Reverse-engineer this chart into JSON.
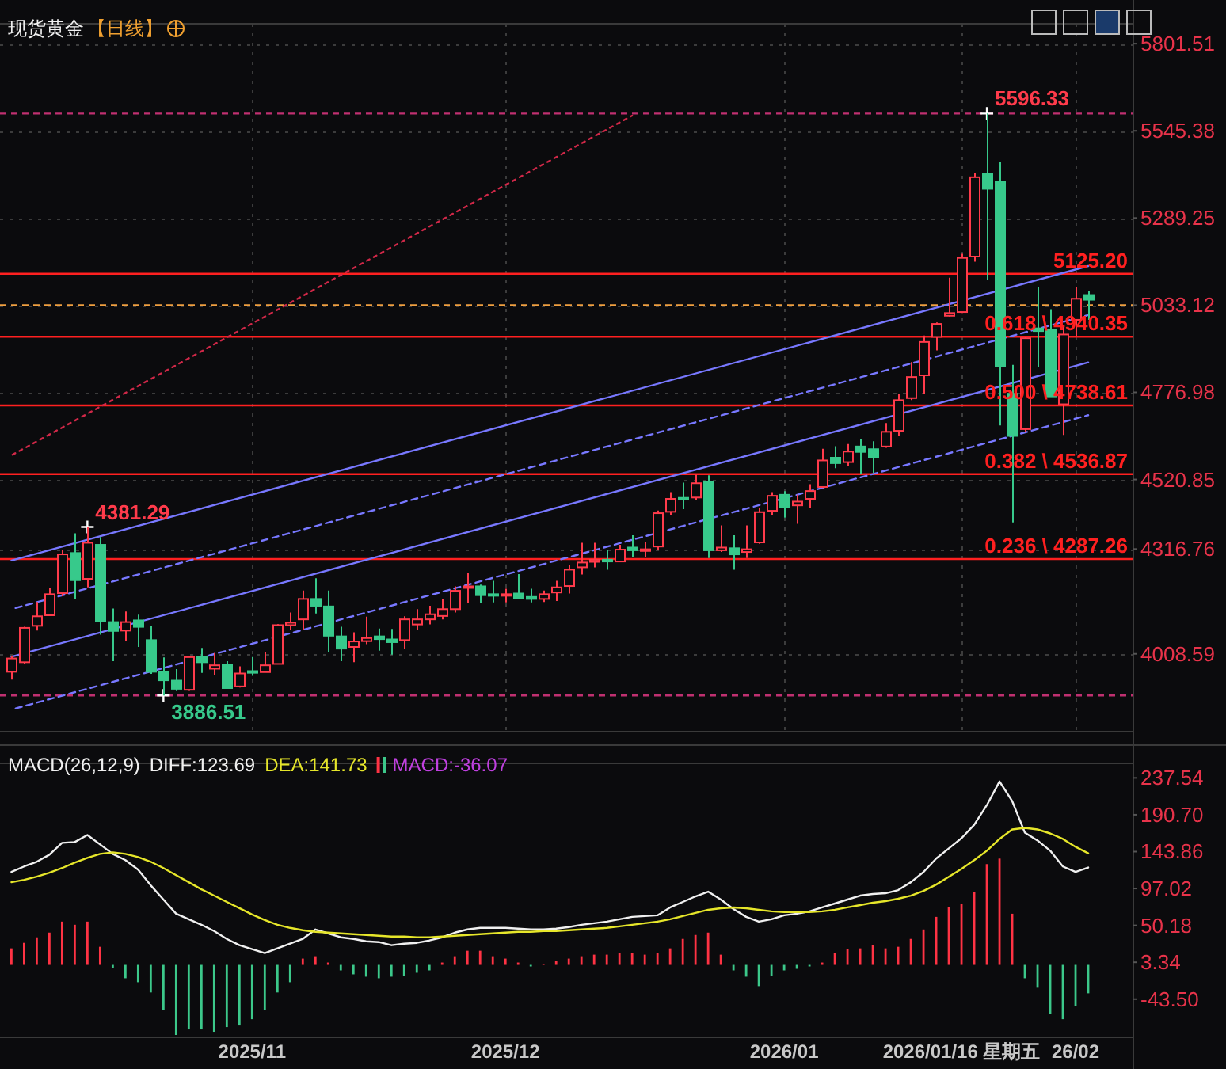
{
  "chart_data": [
    {
      "type": "candlestick",
      "title": "现货黄金",
      "subtitle": "【日线】",
      "tick_labels": "y",
      "grid": true,
      "categories": [
        null,
        null,
        null,
        null,
        null,
        null,
        null,
        null,
        null,
        null,
        null,
        null,
        null,
        null,
        null,
        null,
        null,
        null,
        null,
        null,
        null,
        null,
        null,
        null,
        null,
        null,
        null,
        null,
        null,
        null,
        null,
        null,
        null,
        null,
        null,
        null,
        null,
        null,
        null,
        null,
        null,
        null,
        null,
        null,
        null,
        null,
        null,
        null,
        null,
        null,
        null,
        null,
        null,
        null,
        null,
        null,
        null,
        null,
        null,
        null,
        null,
        null,
        null,
        null,
        null,
        null,
        null,
        null,
        null,
        null,
        null,
        null,
        null,
        null,
        null,
        null,
        null,
        null,
        null,
        null,
        null,
        null,
        null,
        null,
        null,
        null
      ],
      "ohlc": [
        [
          3956,
          4003,
          3933,
          3995
        ],
        [
          3984,
          4088,
          3980,
          4085
        ],
        [
          4091,
          4161,
          4077,
          4119
        ],
        [
          4122,
          4201,
          4120,
          4184
        ],
        [
          4187,
          4313,
          4178,
          4301
        ],
        [
          4305,
          4363,
          4169,
          4225
        ],
        [
          4229,
          4381.29,
          4204,
          4335
        ],
        [
          4329,
          4352,
          4065,
          4104
        ],
        [
          4102,
          4142,
          3987,
          4076
        ],
        [
          4077,
          4133,
          4046,
          4102
        ],
        [
          4107,
          4124,
          4029,
          4088
        ],
        [
          4049,
          4091,
          3950,
          3956
        ],
        [
          3956,
          3998,
          3886.51,
          3931
        ],
        [
          3930,
          3964,
          3899,
          3906
        ],
        [
          3903,
          4003,
          3900,
          3999
        ],
        [
          3999,
          4026,
          3953,
          3984
        ],
        [
          3965,
          4011,
          3945,
          3975
        ],
        [
          3976,
          3987,
          3908,
          3908
        ],
        [
          3913,
          3972,
          3910,
          3951
        ],
        [
          3958,
          3999,
          3944,
          3953
        ],
        [
          3955,
          4015,
          3955,
          3975
        ],
        [
          3979,
          4096,
          3979,
          4093
        ],
        [
          4093,
          4130,
          4080,
          4100
        ],
        [
          4110,
          4195,
          4080,
          4170
        ],
        [
          4170,
          4231,
          4127,
          4150
        ],
        [
          4148,
          4195,
          4015,
          4062
        ],
        [
          4060,
          4088,
          3987,
          4024
        ],
        [
          4029,
          4072,
          3984,
          4045
        ],
        [
          4046,
          4118,
          4037,
          4055
        ],
        [
          4060,
          4083,
          4018,
          4052
        ],
        [
          4051,
          4082,
          4006,
          4043
        ],
        [
          4049,
          4119,
          4024,
          4110
        ],
        [
          4095,
          4140,
          4080,
          4110
        ],
        [
          4110,
          4150,
          4095,
          4125
        ],
        [
          4120,
          4170,
          4110,
          4140
        ],
        [
          4140,
          4207,
          4130,
          4194
        ],
        [
          4203,
          4246,
          4158,
          4207
        ],
        [
          4207,
          4212,
          4158,
          4181
        ],
        [
          4184,
          4223,
          4160,
          4180
        ],
        [
          4180,
          4200,
          4160,
          4184
        ],
        [
          4186,
          4243,
          4170,
          4173
        ],
        [
          4176,
          4200,
          4160,
          4170
        ],
        [
          4170,
          4195,
          4161,
          4184
        ],
        [
          4189,
          4223,
          4164,
          4204
        ],
        [
          4208,
          4270,
          4186,
          4256
        ],
        [
          4263,
          4335,
          4242,
          4277
        ],
        [
          4279,
          4335,
          4263,
          4285
        ],
        [
          4285,
          4313,
          4256,
          4280
        ],
        [
          4280,
          4329,
          4280,
          4315
        ],
        [
          4321,
          4357,
          4293,
          4313
        ],
        [
          4311,
          4338,
          4293,
          4316
        ],
        [
          4324,
          4430,
          4313,
          4422
        ],
        [
          4426,
          4484,
          4417,
          4464
        ],
        [
          4467,
          4512,
          4434,
          4462
        ],
        [
          4468,
          4535,
          4461,
          4510
        ],
        [
          4515,
          4533,
          4290,
          4313
        ],
        [
          4313,
          4386,
          4308,
          4321
        ],
        [
          4319,
          4357,
          4256,
          4301
        ],
        [
          4308,
          4386,
          4290,
          4316
        ],
        [
          4336,
          4437,
          4332,
          4425
        ],
        [
          4429,
          4484,
          4417,
          4473
        ],
        [
          4476,
          4487,
          4409,
          4440
        ],
        [
          4445,
          4476,
          4391,
          4456
        ],
        [
          4464,
          4507,
          4437,
          4487
        ],
        [
          4499,
          4611,
          4496,
          4577
        ],
        [
          4585,
          4619,
          4554,
          4569
        ],
        [
          4572,
          4625,
          4561,
          4603
        ],
        [
          4618,
          4641,
          4537,
          4602
        ],
        [
          4610,
          4633,
          4540,
          4587
        ],
        [
          4618,
          4687,
          4614,
          4661
        ],
        [
          4664,
          4773,
          4649,
          4754
        ],
        [
          4760,
          4866,
          4754,
          4822
        ],
        [
          4827,
          4944,
          4773,
          4925
        ],
        [
          4940,
          4982,
          4900,
          4978
        ],
        [
          5002,
          5114,
          5000,
          5010
        ],
        [
          5013,
          5184,
          5010,
          5172
        ],
        [
          5176,
          5420,
          5161,
          5409
        ],
        [
          5420,
          5596.33,
          5106,
          5375
        ],
        [
          5397,
          5453,
          4680,
          4853
        ],
        [
          4773,
          4858,
          4395,
          4649
        ],
        [
          4669,
          4940,
          4660,
          4936
        ],
        [
          4965,
          5086,
          4850,
          4957
        ],
        [
          4962,
          5021,
          4765,
          4765
        ],
        [
          4742,
          4975,
          4652,
          4947
        ],
        [
          4990,
          5086,
          4943,
          5052
        ],
        [
          5063,
          5075,
          4990,
          5049
        ]
      ],
      "colors": [
        "#ff3b4b",
        "#ff3b4b",
        "#ff3b4b",
        "#ff3b4b",
        "#ff3b4b",
        "#37c98b",
        "#ff3b4b",
        "#37c98b",
        "#37c98b",
        "#ff3b4b",
        "#37c98b",
        "#37c98b",
        "#37c98b",
        "#37c98b",
        "#ff3b4b",
        "#37c98b",
        "#ff3b4b",
        "#37c98b",
        "#ff3b4b",
        "#37c98b",
        "#ff3b4b",
        "#ff3b4b",
        "#ff3b4b",
        "#ff3b4b",
        "#37c98b",
        "#37c98b",
        "#37c98b",
        "#ff3b4b",
        "#ff3b4b",
        "#37c98b",
        "#37c98b",
        "#ff3b4b",
        "#ff3b4b",
        "#ff3b4b",
        "#ff3b4b",
        "#ff3b4b",
        "#ff3b4b",
        "#37c98b",
        "#37c98b",
        "#ff3b4b",
        "#37c98b",
        "#37c98b",
        "#ff3b4b",
        "#ff3b4b",
        "#ff3b4b",
        "#ff3b4b",
        "#ff3b4b",
        "#37c98b",
        "#ff3b4b",
        "#37c98b",
        "#ff3b4b",
        "#ff3b4b",
        "#ff3b4b",
        "#37c98b",
        "#ff3b4b",
        "#37c98b",
        "#ff3b4b",
        "#37c98b",
        "#ff3b4b",
        "#ff3b4b",
        "#ff3b4b",
        "#37c98b",
        "#ff3b4b",
        "#ff3b4b",
        "#ff3b4b",
        "#37c98b",
        "#ff3b4b",
        "#37c98b",
        "#37c98b",
        "#ff3b4b",
        "#ff3b4b",
        "#ff3b4b",
        "#ff3b4b",
        "#ff3b4b",
        "#ff3b4b",
        "#ff3b4b",
        "#ff3b4b",
        "#37c98b",
        "#37c98b",
        "#37c98b",
        "#ff3b4b",
        "#37c98b",
        "#37c98b",
        "#ff3b4b",
        "#ff3b4b",
        "#37c98b"
      ],
      "ylim": [
        3780,
        5860
      ],
      "yticks": [
        5801.51,
        5545.38,
        5289.25,
        5033.12,
        4776.98,
        4520.85,
        4316.76,
        4008.59
      ],
      "series": [
        {
          "type": "line",
          "color": "#7878ff",
          "line_style": "solid",
          "values": [
            4283,
            null,
            null,
            null,
            null,
            null,
            null,
            null,
            null,
            null,
            null,
            null,
            null,
            null,
            null,
            null,
            null,
            null,
            null,
            null,
            null,
            null,
            null,
            null,
            null,
            null,
            null,
            null,
            null,
            null,
            null,
            null,
            null,
            null,
            null,
            null,
            null,
            null,
            null,
            null,
            null,
            null,
            null,
            null,
            null,
            null,
            null,
            null,
            null,
            null,
            null,
            null,
            null,
            null,
            null,
            null,
            null,
            null,
            null,
            null,
            null,
            null,
            null,
            null,
            null,
            null,
            null,
            null,
            null,
            null,
            null,
            null,
            null,
            null,
            null,
            null,
            null,
            null,
            null,
            null,
            null,
            null,
            null,
            null,
            null,
            5148
          ]
        },
        {
          "type": "line",
          "color": "#7878ff",
          "line_style": "dashed",
          "values": [
            4140,
            null,
            null,
            null,
            null,
            null,
            null,
            null,
            null,
            null,
            null,
            null,
            null,
            null,
            null,
            null,
            null,
            null,
            null,
            null,
            null,
            null,
            null,
            null,
            null,
            null,
            null,
            null,
            null,
            null,
            null,
            null,
            null,
            null,
            null,
            null,
            null,
            null,
            null,
            null,
            null,
            null,
            null,
            null,
            null,
            null,
            null,
            null,
            null,
            null,
            null,
            null,
            null,
            null,
            null,
            null,
            null,
            null,
            null,
            null,
            null,
            null,
            null,
            null,
            null,
            null,
            null,
            null,
            null,
            null,
            null,
            null,
            null,
            null,
            null,
            null,
            null,
            null,
            null,
            null,
            null,
            null,
            null,
            null,
            null,
            5004
          ]
        },
        {
          "type": "line",
          "color": "#7878ff",
          "line_style": "solid",
          "values": [
            4000,
            null,
            null,
            null,
            null,
            null,
            null,
            null,
            null,
            null,
            null,
            null,
            null,
            null,
            null,
            null,
            null,
            null,
            null,
            null,
            null,
            null,
            null,
            null,
            null,
            null,
            null,
            null,
            null,
            null,
            null,
            null,
            null,
            null,
            null,
            null,
            null,
            null,
            null,
            null,
            null,
            null,
            null,
            null,
            null,
            null,
            null,
            null,
            null,
            null,
            null,
            null,
            null,
            null,
            null,
            null,
            null,
            null,
            null,
            null,
            null,
            null,
            null,
            null,
            null,
            null,
            null,
            null,
            null,
            null,
            null,
            null,
            null,
            null,
            null,
            null,
            null,
            null,
            null,
            null,
            null,
            null,
            null,
            null,
            null,
            4865
          ]
        },
        {
          "type": "line",
          "color": "#7878ff",
          "line_style": "dashed",
          "values": [
            3845,
            null,
            null,
            null,
            null,
            null,
            null,
            null,
            null,
            null,
            null,
            null,
            null,
            null,
            null,
            null,
            null,
            null,
            null,
            null,
            null,
            null,
            null,
            null,
            null,
            null,
            null,
            null,
            null,
            null,
            null,
            null,
            null,
            null,
            null,
            null,
            null,
            null,
            null,
            null,
            null,
            null,
            null,
            null,
            null,
            null,
            null,
            null,
            null,
            null,
            null,
            null,
            null,
            null,
            null,
            null,
            null,
            null,
            null,
            null,
            null,
            null,
            null,
            null,
            null,
            null,
            null,
            null,
            null,
            null,
            null,
            null,
            null,
            null,
            null,
            null,
            null,
            null,
            null,
            null,
            null,
            null,
            null,
            null,
            null,
            4710
          ]
        },
        {
          "type": "line",
          "color": "#d02848",
          "line_style": "dotted",
          "values": [
            4592,
            null,
            null,
            null,
            null,
            null,
            null,
            null,
            null,
            null,
            null,
            null,
            null,
            null,
            null,
            null,
            null,
            null,
            null,
            null,
            null,
            null,
            null,
            null,
            null,
            null,
            null,
            null,
            null,
            null,
            null,
            null,
            null,
            null,
            null,
            null,
            null,
            null,
            null,
            null,
            null,
            null,
            null,
            null,
            null,
            null,
            null,
            null,
            null,
            5590,
            null,
            null,
            null,
            null,
            null,
            null,
            null,
            null,
            null,
            null,
            null,
            null,
            null,
            null,
            null,
            null,
            null,
            null,
            null,
            null,
            null,
            null,
            null,
            null,
            null,
            null,
            null,
            null,
            null,
            null,
            null,
            null,
            null,
            null,
            null,
            null
          ]
        }
      ],
      "ref_lines": [
        {
          "axis": "y",
          "value": 5125.2,
          "label": "5125.20",
          "color": "#ff2020"
        },
        {
          "axis": "y",
          "value": 4940.35,
          "label": "0.618 \\ 4940.35",
          "color": "#ff2020"
        },
        {
          "axis": "y",
          "value": 4738.61,
          "label": "0.500 \\ 4738.61",
          "color": "#ff2020"
        },
        {
          "axis": "y",
          "value": 4536.87,
          "label": "0.382 \\ 4536.87",
          "color": "#ff2020"
        },
        {
          "axis": "y",
          "value": 4287.26,
          "label": "0.236 \\ 4287.26",
          "color": "#ff2020"
        },
        {
          "axis": "y",
          "value": 5033.12,
          "color": "#f0a040",
          "line_style": "dashed"
        },
        {
          "axis": "y",
          "value": 5596.33,
          "color": "#c03070",
          "line_style": "dashed"
        },
        {
          "axis": "y",
          "value": 3886.51,
          "color": "#c03070",
          "line_style": "dashed"
        }
      ],
      "annotations": [
        {
          "text": "4381.29",
          "y": 4381.29
        },
        {
          "text": "5596.33",
          "y": 5596.33
        },
        {
          "text": "3886.51",
          "y": 3886.51
        }
      ]
    },
    {
      "type": "line",
      "title": "MACD(26,12,9)",
      "legend": "top left",
      "categories": [
        null,
        null,
        null,
        null,
        null,
        null,
        null,
        null,
        null,
        null,
        null,
        null,
        null,
        null,
        null,
        null,
        null,
        null,
        null,
        "2025/11",
        null,
        null,
        null,
        null,
        null,
        null,
        null,
        null,
        null,
        null,
        null,
        null,
        null,
        null,
        null,
        null,
        null,
        null,
        null,
        "2025/12",
        null,
        null,
        null,
        null,
        null,
        null,
        null,
        null,
        null,
        null,
        null,
        null,
        null,
        null,
        null,
        null,
        null,
        null,
        null,
        null,
        null,
        "2026/01",
        null,
        null,
        null,
        null,
        null,
        null,
        null,
        null,
        null,
        null,
        null,
        null,
        null,
        "2026/01/16 星期五",
        null,
        null,
        null,
        null,
        null,
        null,
        null,
        null,
        "26/02",
        null
      ],
      "ylim": [
        -92,
        256
      ],
      "yticks": [
        237.54,
        {
          "value": 190.7,
          "label": "190.70"
        },
        143.86,
        97.02,
        50.18,
        3.34,
        {
          "value": -43.5,
          "label": "-43.50"
        }
      ],
      "series": [
        {
          "name": "DIFF:123.69",
          "color": "#f0f0f0",
          "values": [
            118,
            125,
            131,
            140,
            155,
            156,
            165,
            153,
            141,
            133,
            121,
            101,
            83,
            65,
            58,
            51,
            43,
            33,
            25,
            20,
            15,
            21,
            27,
            33,
            45,
            40,
            35,
            33,
            30,
            29,
            25,
            27,
            28,
            31,
            35,
            41,
            45,
            47,
            47,
            47,
            46,
            45,
            45,
            46,
            48,
            51,
            53,
            55,
            58,
            61,
            62,
            63,
            73,
            80,
            87,
            93,
            83,
            71,
            61,
            55,
            58,
            63,
            65,
            68,
            73,
            78,
            83,
            88,
            90,
            91,
            95,
            105,
            118,
            135,
            148,
            161,
            178,
            203,
            233,
            208,
            168,
            158,
            145,
            125,
            118,
            123.69
          ]
        },
        {
          "name": "DEA:141.73",
          "color": "#e6e62a",
          "values": [
            105,
            108,
            112,
            117,
            123,
            130,
            136,
            141,
            143,
            141,
            137,
            131,
            123,
            114,
            105,
            96,
            88,
            80,
            72,
            64,
            57,
            51,
            47,
            44,
            42,
            41,
            40,
            39,
            38,
            37,
            36,
            36,
            35,
            35,
            36,
            37,
            38,
            39,
            40,
            41,
            42,
            42,
            43,
            43,
            44,
            45,
            46,
            47,
            49,
            51,
            53,
            55,
            58,
            62,
            66,
            70,
            72,
            73,
            72,
            70,
            68,
            67,
            67,
            67,
            68,
            70,
            73,
            76,
            79,
            81,
            84,
            88,
            94,
            102,
            112,
            122,
            133,
            145,
            160,
            172,
            174,
            172,
            167,
            160,
            150,
            141.73
          ]
        },
        {
          "name": "MACD:-36.07",
          "type": "bar",
          "color": "#c040e0",
          "values": [
            21,
            28,
            35,
            41,
            55,
            51,
            55,
            23,
            -4,
            -17,
            -22,
            -35,
            -57,
            -89,
            -82,
            -82,
            -85,
            -79,
            -77,
            -69,
            -57,
            -35,
            -22,
            8,
            11,
            3,
            -7,
            -12,
            -15,
            -17,
            -15,
            -14,
            -10,
            -7,
            3,
            11,
            18,
            18,
            11,
            8,
            3,
            -2,
            1,
            5,
            8,
            11,
            13,
            13,
            15,
            15,
            13,
            15,
            21,
            33,
            38,
            41,
            13,
            -7,
            -15,
            -27,
            -14,
            -7,
            -5,
            -2,
            3,
            15,
            20,
            21,
            25,
            21,
            23,
            33,
            45,
            61,
            73,
            78,
            93,
            128,
            135,
            65,
            -17,
            -29,
            -62,
            -69,
            -52,
            -36.07
          ],
          "colors": [
            "#ff3344",
            "#ff3344",
            "#ff3344",
            "#ff3344",
            "#ff3344",
            "#ff3344",
            "#ff3344",
            "#ff3344",
            "#3cc88a",
            "#3cc88a",
            "#3cc88a",
            "#3cc88a",
            "#3cc88a",
            "#3cc88a",
            "#3cc88a",
            "#3cc88a",
            "#3cc88a",
            "#3cc88a",
            "#3cc88a",
            "#3cc88a",
            "#3cc88a",
            "#3cc88a",
            "#3cc88a",
            "#ff3344",
            "#ff3344",
            "#ff3344",
            "#3cc88a",
            "#3cc88a",
            "#3cc88a",
            "#3cc88a",
            "#3cc88a",
            "#3cc88a",
            "#3cc88a",
            "#3cc88a",
            "#ff3344",
            "#ff3344",
            "#ff3344",
            "#ff3344",
            "#ff3344",
            "#ff3344",
            "#ff3344",
            "#3cc88a",
            "#ff3344",
            "#ff3344",
            "#ff3344",
            "#ff3344",
            "#ff3344",
            "#ff3344",
            "#ff3344",
            "#ff3344",
            "#ff3344",
            "#ff3344",
            "#ff3344",
            "#ff3344",
            "#ff3344",
            "#ff3344",
            "#ff3344",
            "#3cc88a",
            "#3cc88a",
            "#3cc88a",
            "#3cc88a",
            "#3cc88a",
            "#3cc88a",
            "#3cc88a",
            "#ff3344",
            "#ff3344",
            "#ff3344",
            "#ff3344",
            "#ff3344",
            "#ff3344",
            "#ff3344",
            "#ff3344",
            "#ff3344",
            "#ff3344",
            "#ff3344",
            "#ff3344",
            "#ff3344",
            "#ff3344",
            "#ff3344",
            "#ff3344",
            "#3cc88a",
            "#3cc88a",
            "#3cc88a",
            "#3cc88a",
            "#3cc88a",
            "#3cc88a"
          ]
        }
      ]
    }
  ]
}
